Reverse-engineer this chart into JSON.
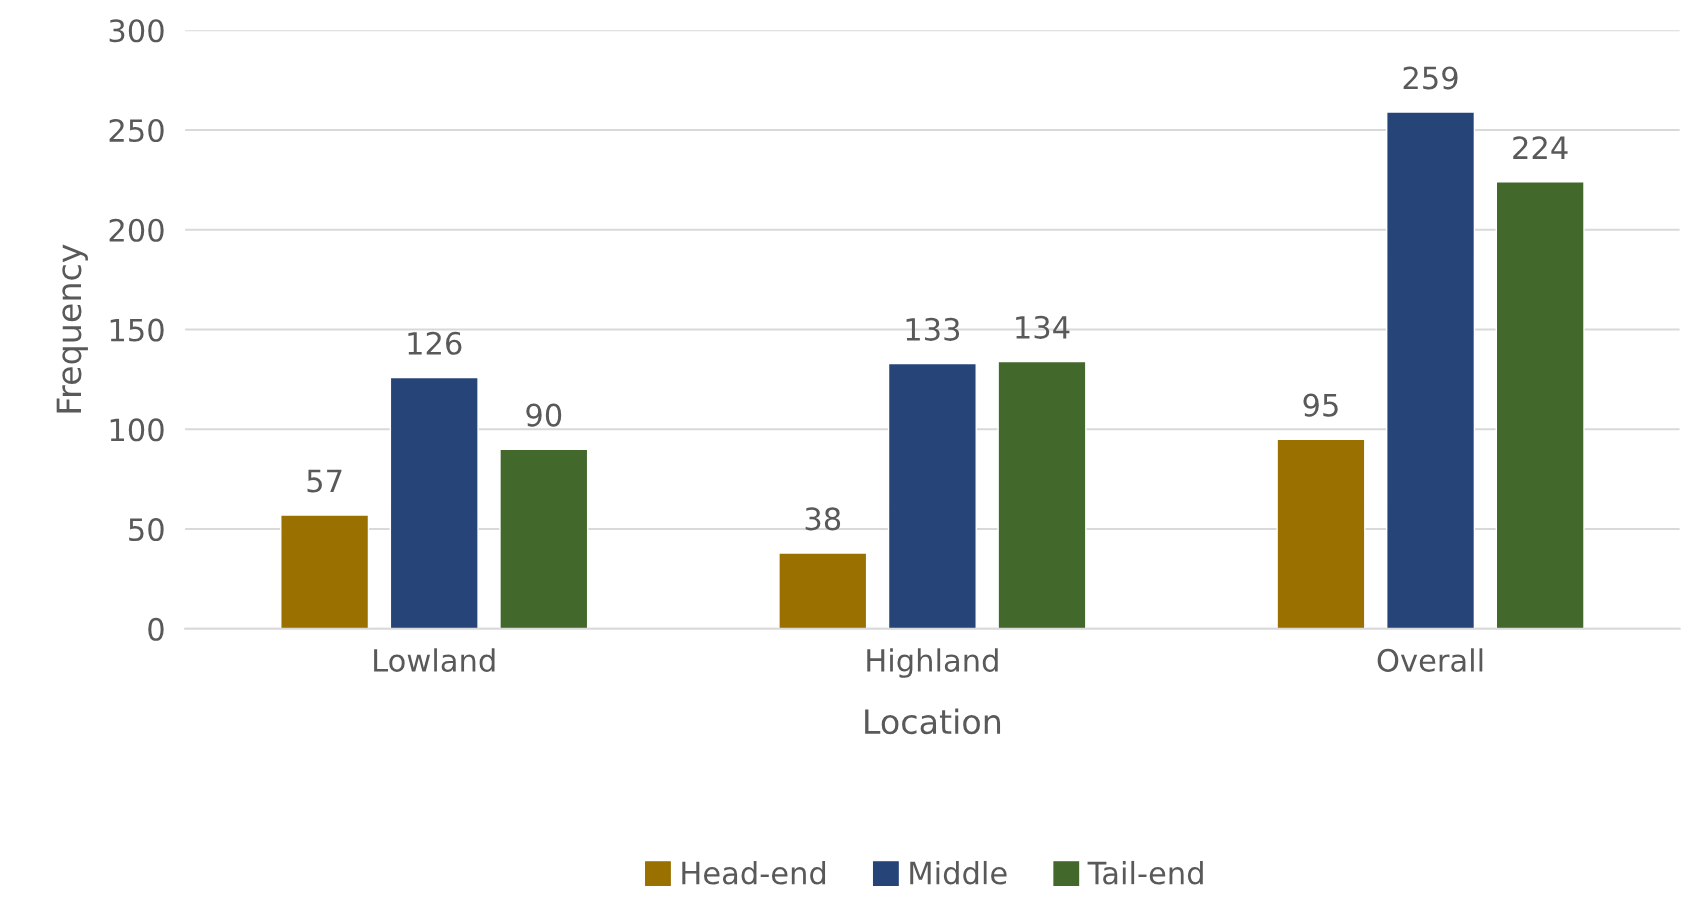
{
  "chart_data": {
    "type": "bar",
    "xlabel": "Location",
    "ylabel": "Frequency",
    "categories": [
      "Lowland",
      "Highland",
      "Overall"
    ],
    "series": [
      {
        "name": "Head-end",
        "color": "#9a7000",
        "values": [
          57,
          38,
          95
        ]
      },
      {
        "name": "Middle",
        "color": "#264478",
        "values": [
          126,
          133,
          259
        ]
      },
      {
        "name": "Tail-end",
        "color": "#43682b",
        "values": [
          90,
          134,
          224
        ]
      }
    ],
    "ylim": [
      0,
      300
    ],
    "yticks": [
      0,
      50,
      100,
      150,
      200,
      250,
      300
    ],
    "grid": "y",
    "legend": "bottom",
    "data_labels": true
  }
}
